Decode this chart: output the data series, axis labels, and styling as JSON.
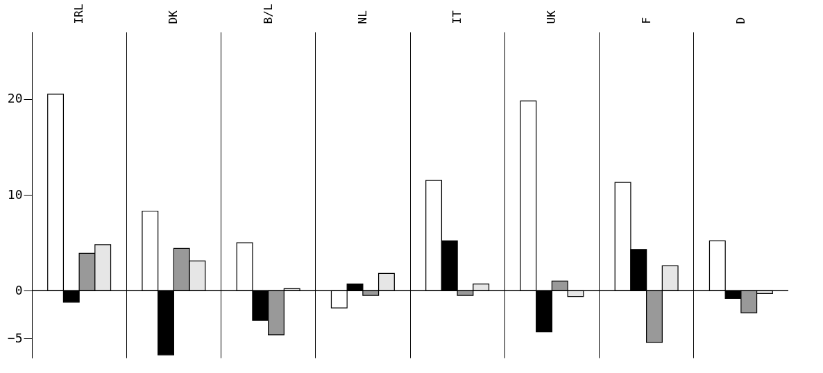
{
  "chart_data": {
    "type": "bar",
    "categories": [
      "IRL",
      "DK",
      "B/L",
      "NL",
      "IT",
      "UK",
      "F",
      "D"
    ],
    "series": [
      {
        "color": "#ffffff",
        "values": [
          20.5,
          8.3,
          5,
          -1.8,
          11.5,
          19.8,
          11.3,
          5.2
        ]
      },
      {
        "color": "#000000",
        "values": [
          -1.2,
          -6.7,
          -3.1,
          0.7,
          5.2,
          -4.3,
          4.3,
          -0.8
        ]
      },
      {
        "color": "#999999",
        "values": [
          3.9,
          4.4,
          -4.6,
          -0.5,
          -0.5,
          1,
          -5.4,
          -2.3
        ]
      },
      {
        "color": "#e6e6e6",
        "values": [
          4.8,
          3.1,
          0.2,
          1.8,
          0.7,
          -0.6,
          2.6,
          -0.3
        ]
      }
    ],
    "ylim": [
      -7,
      27
    ],
    "yticks": [
      -5,
      0,
      10,
      20
    ],
    "grid": "x",
    "ref_lines": [
      {
        "axis": "y",
        "value": 0
      }
    ]
  }
}
